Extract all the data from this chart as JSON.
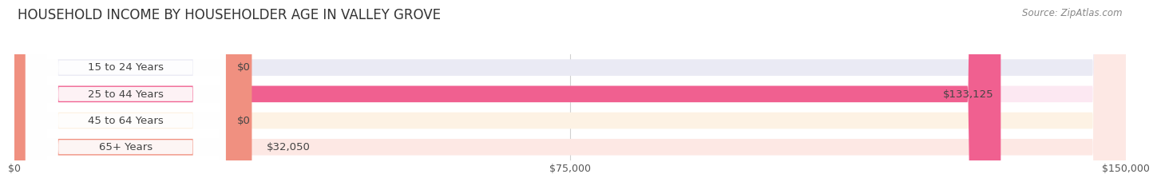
{
  "title": "HOUSEHOLD INCOME BY HOUSEHOLDER AGE IN VALLEY GROVE",
  "source": "Source: ZipAtlas.com",
  "categories": [
    "15 to 24 Years",
    "25 to 44 Years",
    "45 to 64 Years",
    "65+ Years"
  ],
  "values": [
    0,
    133125,
    0,
    32050
  ],
  "bar_colors": [
    "#a8a8d8",
    "#f06090",
    "#f5c890",
    "#f09080"
  ],
  "bar_bg_colors": [
    "#eaeaf4",
    "#fce8f2",
    "#fdf2e4",
    "#fde8e4"
  ],
  "value_labels": [
    "$0",
    "$133,125",
    "$0",
    "$32,050"
  ],
  "xlim": [
    0,
    150000
  ],
  "xticks": [
    0,
    75000,
    150000
  ],
  "xticklabels": [
    "$0",
    "$75,000",
    "$150,000"
  ],
  "title_fontsize": 12,
  "tick_fontsize": 9,
  "bar_label_fontsize": 9.5,
  "cat_label_fontsize": 9.5,
  "source_fontsize": 8.5,
  "background_color": "#ffffff",
  "bar_height": 0.62,
  "label_pill_color": "#ffffff"
}
